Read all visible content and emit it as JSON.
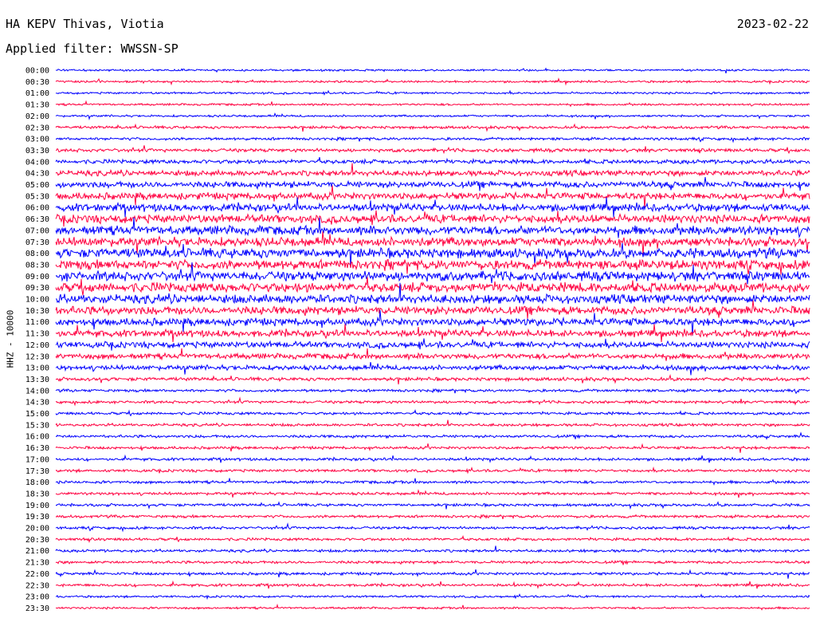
{
  "header": {
    "station": "HA KEPV Thivas, Viotia",
    "date": "2023-02-22",
    "filter": "Applied filter: WWSSN-SP"
  },
  "colors": {
    "trace_a": "#0000ff",
    "trace_b": "#ff0040",
    "background": "#ffffff"
  },
  "chart_data": {
    "type": "line",
    "title": "HA KEPV Thivas, Viotia",
    "ylabel": "HHZ - 10000",
    "xlabel": "",
    "grid": false,
    "legend": "none",
    "rows": [
      "00:00",
      "00:30",
      "01:00",
      "01:30",
      "02:00",
      "02:30",
      "03:00",
      "03:30",
      "04:00",
      "04:30",
      "05:00",
      "05:30",
      "06:00",
      "06:30",
      "07:00",
      "07:30",
      "08:00",
      "08:30",
      "09:00",
      "09:30",
      "10:00",
      "10:30",
      "11:00",
      "11:30",
      "12:00",
      "12:30",
      "13:00",
      "13:30",
      "14:00",
      "14:30",
      "15:00",
      "15:30",
      "16:00",
      "16:30",
      "17:00",
      "17:30",
      "18:00",
      "18:30",
      "19:00",
      "19:30",
      "20:00",
      "20:30",
      "21:00",
      "21:30",
      "22:00",
      "22:30",
      "23:00",
      "23:30"
    ],
    "row_amplitude": [
      3,
      3,
      3,
      3,
      3,
      4,
      4,
      5,
      6,
      8,
      9,
      10,
      11,
      12,
      13,
      13,
      14,
      14,
      14,
      14,
      13,
      12,
      11,
      10,
      9,
      8,
      7,
      5,
      4,
      4,
      4,
      4,
      4,
      4,
      4,
      4,
      4,
      4,
      4,
      4,
      4,
      4,
      4,
      4,
      4,
      4,
      3,
      3
    ],
    "trace_colors": [
      "blue",
      "red"
    ]
  }
}
